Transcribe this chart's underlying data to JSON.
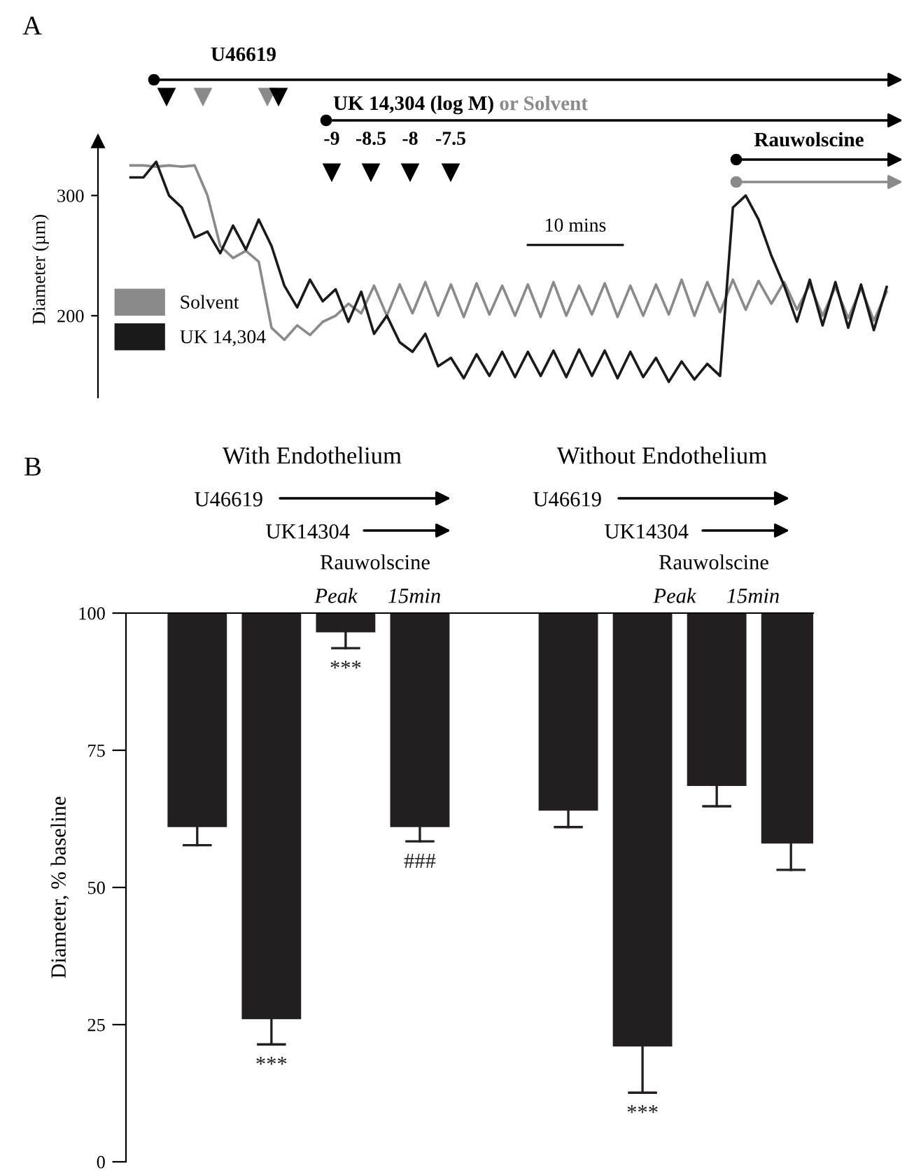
{
  "chart_data": [
    {
      "type": "line",
      "ylabel": "Diameter (µm)",
      "ylim": [
        132,
        345
      ],
      "yticks": [
        200,
        300
      ],
      "tick_labels": "y",
      "legend": "bottom left",
      "grid": false,
      "categories": [
        null,
        null,
        null,
        null,
        null,
        null,
        null,
        null,
        null,
        null,
        null,
        null,
        null,
        null,
        null,
        null,
        null,
        null,
        null,
        null,
        null,
        null,
        null,
        null,
        null,
        null,
        null,
        null,
        null,
        null,
        null,
        null,
        null,
        null,
        null,
        null,
        null,
        null,
        null,
        null,
        null,
        null,
        null,
        null,
        null,
        null,
        null,
        null,
        null,
        null,
        null,
        null,
        null,
        null,
        null,
        null,
        null,
        null,
        null,
        null
      ],
      "series": [
        {
          "name": "Solvent",
          "color": "#8a8a8a",
          "values": [
            325,
            325,
            324,
            325,
            324,
            325,
            300,
            258,
            248,
            254,
            245,
            190,
            180,
            192,
            184,
            195,
            200,
            210,
            202,
            225,
            200,
            226,
            202,
            228,
            200,
            226,
            199,
            227,
            201,
            225,
            200,
            226,
            199,
            228,
            200,
            225,
            201,
            227,
            199,
            225,
            200,
            226,
            201,
            230,
            200,
            228,
            203,
            230,
            205,
            229,
            210,
            228,
            205,
            226,
            200,
            224,
            198,
            223,
            196,
            220
          ]
        },
        {
          "name": "UK 14,304",
          "color": "#1a1a1a",
          "values": [
            315,
            315,
            328,
            300,
            290,
            265,
            270,
            252,
            275,
            255,
            280,
            258,
            225,
            207,
            230,
            212,
            222,
            195,
            220,
            185,
            200,
            178,
            170,
            185,
            158,
            165,
            148,
            168,
            150,
            170,
            149,
            170,
            150,
            171,
            149,
            172,
            150,
            171,
            148,
            170,
            149,
            165,
            145,
            162,
            147,
            160,
            150,
            290,
            300,
            280,
            250,
            225,
            195,
            230,
            192,
            228,
            190,
            226,
            188,
            224
          ]
        }
      ],
      "annotations": [
        "A",
        "U46619",
        "UK 14,304 (log M)",
        "or Solvent",
        "-9",
        "-8.5",
        "-8",
        "-7.5",
        "Rauwolscine",
        "10 mins"
      ]
    },
    {
      "type": "bar",
      "ylabel": "Diameter, % baseline",
      "ylim": [
        0,
        100
      ],
      "yticks": [
        0,
        25,
        50,
        75,
        100
      ],
      "tick_labels": "y",
      "grid": false,
      "color": "#231f20",
      "categories": [
        null,
        null,
        null,
        null,
        null,
        null,
        null,
        null,
        null
      ],
      "base": [
        100,
        100,
        100,
        100,
        null,
        100,
        100,
        100,
        100
      ],
      "values": [
        -39,
        -74,
        -3.5,
        -39,
        null,
        -36,
        -79,
        -31.5,
        -42
      ],
      "errors": [
        [
          57.7,
          61
        ],
        [
          21.4,
          26
        ],
        [
          93.6,
          96.5
        ],
        [
          58.4,
          61
        ],
        null,
        [
          61,
          64
        ],
        [
          12.6,
          21
        ],
        [
          64.8,
          68.5
        ],
        [
          53.2,
          58
        ]
      ],
      "value_labels": [
        null,
        "***",
        "***",
        "###",
        null,
        null,
        "***",
        null,
        null
      ],
      "annotations": [
        "B",
        "With Endothelium",
        "Without Endothelium",
        "U46619",
        "UK14304",
        "Rauwolscine",
        "Peak",
        "15min",
        "U46619",
        "UK14304",
        "Rauwolscine",
        "Peak",
        "15min"
      ]
    }
  ]
}
